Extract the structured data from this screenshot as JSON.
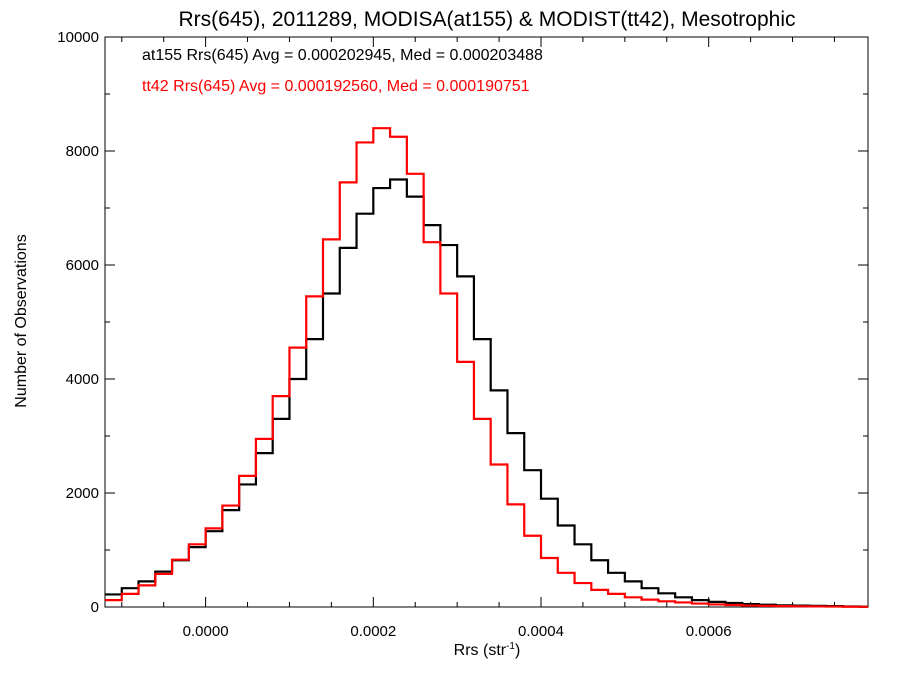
{
  "chart_data": {
    "type": "line",
    "title": "Rrs(645), 2011289, MODISA(at155) & MODIST(tt42), Mesotrophic",
    "xlabel_main": "Rrs (str",
    "xlabel_sup": "-1",
    "xlabel_close": ")",
    "ylabel": "Number of Observations",
    "xlim": [
      -0.00012,
      0.00079
    ],
    "ylim": [
      0,
      10000
    ],
    "xticks": [
      0.0,
      0.0002,
      0.0004,
      0.0006
    ],
    "xtick_labels": [
      "0.0000",
      "0.0002",
      "0.0004",
      "0.0006"
    ],
    "yticks": [
      0,
      2000,
      4000,
      6000,
      8000,
      10000
    ],
    "ytick_labels": [
      "0",
      "2000",
      "4000",
      "6000",
      "8000",
      "10000"
    ],
    "legend_position": "top-left",
    "annotations": [
      "at155 Rrs(645) Avg = 0.000202945, Med = 0.000203488",
      "tt42 Rrs(645) Avg = 0.000192560, Med = 0.000190751"
    ],
    "series": [
      {
        "label": "at155",
        "color": "#000000",
        "style": "histogram-step",
        "x": [
          -0.00012,
          -0.0001,
          -8e-05,
          -6e-05,
          -4e-05,
          -2e-05,
          0.0,
          2e-05,
          4e-05,
          6e-05,
          8e-05,
          0.0001,
          0.00012,
          0.00014,
          0.00016,
          0.00018,
          0.0002,
          0.00022,
          0.00024,
          0.00026,
          0.00028,
          0.0003,
          0.00032,
          0.00034,
          0.00036,
          0.00038,
          0.0004,
          0.00042,
          0.00044,
          0.00046,
          0.00048,
          0.0005,
          0.00052,
          0.00054,
          0.00056,
          0.00058,
          0.0006,
          0.00062,
          0.00064,
          0.00066,
          0.00068,
          0.0007,
          0.00072,
          0.00074,
          0.00076,
          0.00078
        ],
        "y": [
          220,
          330,
          450,
          620,
          820,
          1050,
          1330,
          1700,
          2150,
          2700,
          3300,
          4000,
          4700,
          5500,
          6300,
          6900,
          7350,
          7500,
          7200,
          6700,
          6350,
          5800,
          4700,
          3800,
          3050,
          2400,
          1900,
          1430,
          1100,
          820,
          600,
          450,
          330,
          240,
          170,
          120,
          90,
          70,
          50,
          40,
          30,
          25,
          20,
          15,
          10,
          5
        ]
      },
      {
        "label": "tt42",
        "color": "#ff0000",
        "style": "histogram-step",
        "x": [
          -0.00012,
          -0.0001,
          -8e-05,
          -6e-05,
          -4e-05,
          -2e-05,
          0.0,
          2e-05,
          4e-05,
          6e-05,
          8e-05,
          0.0001,
          0.00012,
          0.00014,
          0.00016,
          0.00018,
          0.0002,
          0.00022,
          0.00024,
          0.00026,
          0.00028,
          0.0003,
          0.00032,
          0.00034,
          0.00036,
          0.00038,
          0.0004,
          0.00042,
          0.00044,
          0.00046,
          0.00048,
          0.0005,
          0.00052,
          0.00054,
          0.00056,
          0.00058,
          0.0006,
          0.00062,
          0.00064,
          0.00066,
          0.00068,
          0.0007,
          0.00072,
          0.00074,
          0.00076,
          0.00078
        ],
        "y": [
          120,
          230,
          380,
          580,
          830,
          1100,
          1380,
          1780,
          2300,
          2950,
          3700,
          4550,
          5450,
          6450,
          7450,
          8150,
          8400,
          8250,
          7600,
          6400,
          5500,
          4300,
          3300,
          2500,
          1800,
          1250,
          860,
          600,
          420,
          300,
          230,
          170,
          130,
          100,
          80,
          60,
          45,
          35,
          25,
          20,
          15,
          12,
          10,
          8,
          5,
          3
        ]
      }
    ]
  }
}
